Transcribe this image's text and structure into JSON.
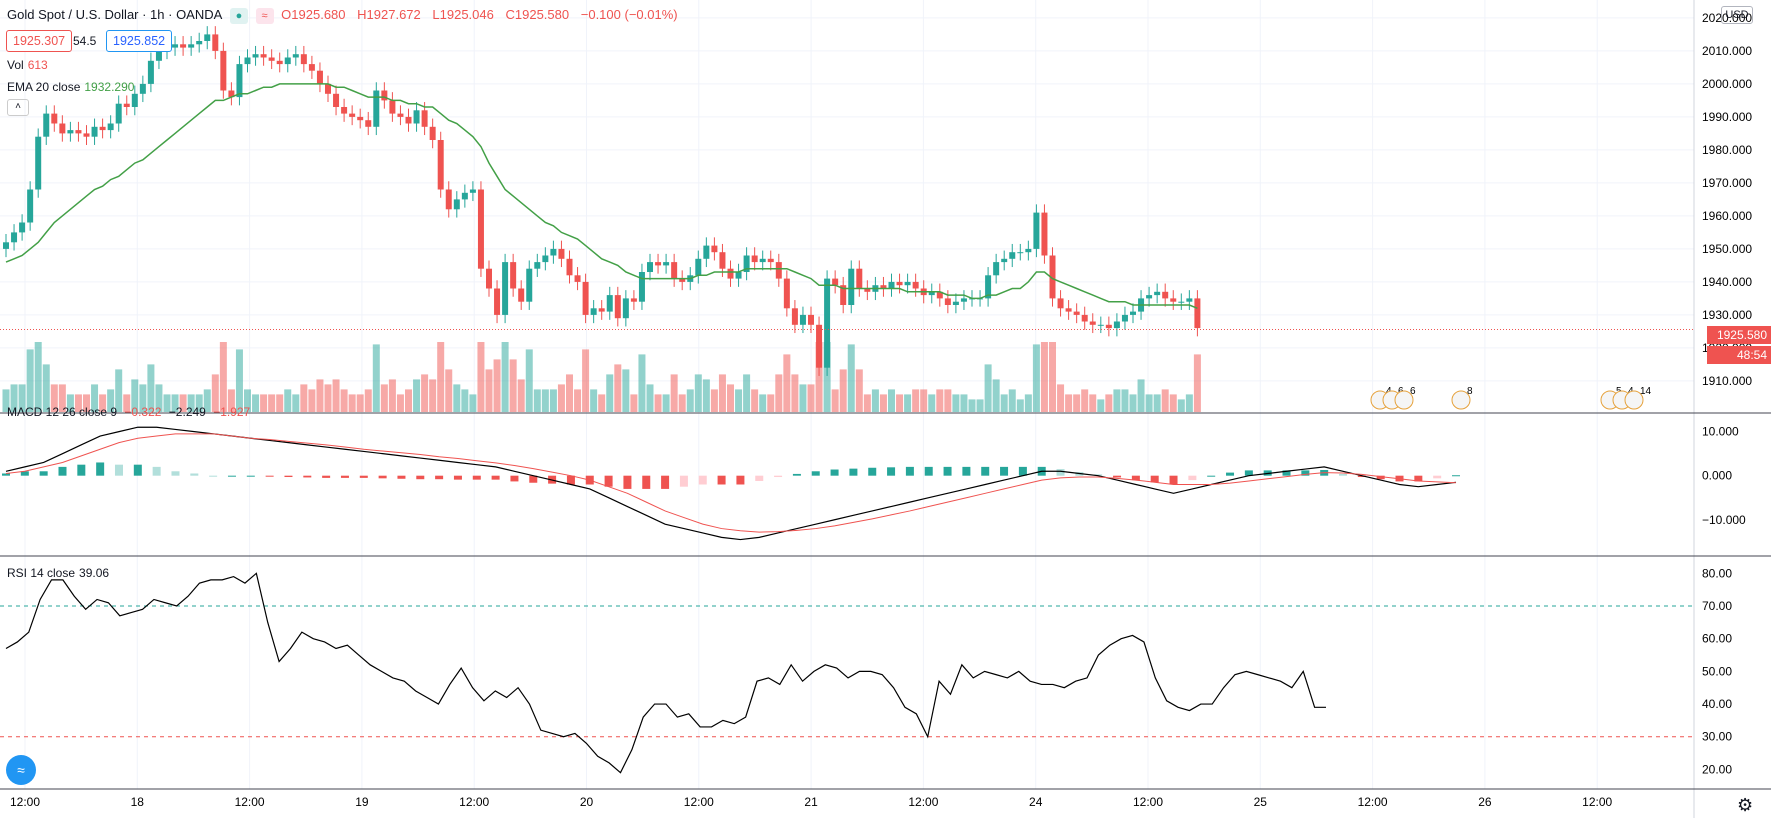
{
  "header": {
    "symbol": "Gold Spot / U.S. Dollar · 1h · OANDA",
    "ohlc": [
      {
        "k": "O",
        "v": "1925.680"
      },
      {
        "k": "H",
        "v": "1927.672"
      },
      {
        "k": "L",
        "v": "1925.046"
      },
      {
        "k": "C",
        "v": "1925.580"
      }
    ],
    "change": "−0.100 (−0.01%)",
    "bid": "1925.307",
    "spread": "54.5",
    "ask": "1925.852",
    "vol_label": "Vol",
    "vol_value": "613",
    "ema_label": "EMA 20 close",
    "ema_value": "1932.290",
    "currency": "USD",
    "last_price": "1925.580",
    "countdown": "48:54",
    "macd_label": "MACD 12 26 close 9",
    "macd_values": [
      "−0.322",
      "−2.249",
      "−1.927"
    ],
    "rsi_label": "RSI 14 close",
    "rsi_value": "39.06",
    "event_labels": [
      "4",
      "6",
      "6",
      "8",
      "5",
      "4",
      "14"
    ],
    "colors": {
      "up": "#26a69a",
      "down": "#ef5350",
      "ema": "#43a047",
      "macd": "#000000",
      "signal": "#ef5350",
      "rsi": "#000000"
    }
  },
  "chart_data": [
    {
      "type": "candlestick",
      "title": "Gold Spot / U.S. Dollar · 1h · OANDA",
      "x_ticks": [
        "12:00",
        "18",
        "12:00",
        "19",
        "12:00",
        "20",
        "12:00",
        "21",
        "12:00",
        "24",
        "12:00",
        "25",
        "12:00",
        "26",
        "12:00"
      ],
      "y_ticks": [
        "1910.000",
        "1920.000",
        "1930.000",
        "1940.000",
        "1950.000",
        "1960.000",
        "1970.000",
        "1980.000",
        "1990.000",
        "2000.000",
        "2010.000",
        "2020.000"
      ],
      "ylim": [
        1903,
        2023
      ],
      "close": [
        1952,
        1955,
        1958,
        1968,
        1984,
        1991,
        1988,
        1985,
        1986,
        1985,
        1984,
        1987,
        1986,
        1988,
        1994,
        1993,
        1997,
        2000,
        2007,
        2010,
        2011,
        2012,
        2011,
        2012,
        2013,
        2015,
        2010,
        1998,
        1996,
        2006,
        2008,
        2009,
        2008,
        2007,
        2006,
        2008,
        2009,
        2006,
        2004,
        2000,
        1997,
        1993,
        1991,
        1990,
        1989,
        1987,
        1998,
        1995,
        1991,
        1990,
        1988,
        1992,
        1987,
        1983,
        1968,
        1962,
        1965,
        1967,
        1968,
        1944,
        1938,
        1930,
        1946,
        1938,
        1934,
        1944,
        1946,
        1948,
        1950,
        1947,
        1942,
        1940,
        1930,
        1932,
        1931,
        1936,
        1929,
        1935,
        1934,
        1943,
        1946,
        1945,
        1946,
        1941,
        1940,
        1942,
        1947,
        1951,
        1949,
        1944,
        1941,
        1943,
        1948,
        1946,
        1947,
        1946,
        1941,
        1932,
        1927,
        1930,
        1927,
        1914,
        1941,
        1939,
        1933,
        1944,
        1938,
        1937,
        1939,
        1938,
        1940,
        1939,
        1940,
        1938,
        1936,
        1937,
        1935,
        1933,
        1934,
        1935,
        1935,
        1935,
        1942,
        1946,
        1947,
        1949,
        1949,
        1950,
        1961,
        1948,
        1935,
        1932,
        1931,
        1930,
        1928,
        1927,
        1927,
        1926,
        1928,
        1930,
        1931,
        1935,
        1936,
        1937,
        1935,
        1934,
        1934,
        1935,
        1926
      ]
    },
    {
      "type": "line",
      "name": "EMA 20 close",
      "values": [
        1946,
        1947,
        1948,
        1950,
        1952,
        1955,
        1958,
        1960,
        1962,
        1964,
        1966,
        1968,
        1969,
        1971,
        1972,
        1974,
        1976,
        1977,
        1979,
        1981,
        1983,
        1985,
        1987,
        1989,
        1991,
        1993,
        1995,
        1995,
        1996,
        1997,
        1997,
        1998,
        1999,
        1999,
        2000,
        2000,
        2000,
        2000,
        2000,
        2000,
        2000,
        1999,
        1999,
        1998,
        1997,
        1996,
        1996,
        1996,
        1995,
        1995,
        1994,
        1994,
        1993,
        1993,
        1991,
        1989,
        1988,
        1986,
        1984,
        1981,
        1976,
        1972,
        1968,
        1966,
        1964,
        1962,
        1960,
        1958,
        1957,
        1955,
        1954,
        1953,
        1951,
        1949,
        1947,
        1946,
        1945,
        1943,
        1942,
        1941,
        1941,
        1941,
        1941,
        1941,
        1941,
        1941,
        1942,
        1942,
        1943,
        1943,
        1943,
        1943,
        1944,
        1944,
        1944,
        1944,
        1944,
        1944,
        1943,
        1942,
        1941,
        1939,
        1939,
        1939,
        1938,
        1938,
        1938,
        1938,
        1938,
        1938,
        1938,
        1938,
        1937,
        1937,
        1937,
        1937,
        1937,
        1936,
        1936,
        1936,
        1935,
        1935,
        1936,
        1936,
        1937,
        1938,
        1938,
        1940,
        1943,
        1943,
        1941,
        1940,
        1939,
        1938,
        1937,
        1936,
        1935,
        1934,
        1934,
        1934,
        1933,
        1933,
        1933,
        1933,
        1933,
        1933,
        1933,
        1933,
        1932
      ],
      "values_max": 2000
    },
    {
      "type": "bar",
      "name": "Vol",
      "value": 613
    },
    {
      "type": "macd",
      "title": "MACD 12 26 close 9",
      "y_ticks": [
        "−10.000",
        "0.000",
        "10.000"
      ],
      "ylim": [
        -18,
        14
      ],
      "macd": [
        1,
        2,
        3,
        5,
        7,
        9,
        10,
        11,
        11,
        10.5,
        10,
        9.5,
        9,
        8.5,
        8,
        7.5,
        7,
        6.5,
        6,
        5.5,
        5,
        4.5,
        4,
        3.5,
        3,
        2.5,
        2,
        1,
        0,
        -1,
        -2,
        -3,
        -5,
        -7,
        -9,
        -11,
        -12,
        -13,
        -14,
        -14.5,
        -14,
        -13,
        -12,
        -11,
        -10,
        -9,
        -8,
        -7,
        -6,
        -5,
        -4,
        -3,
        -2,
        -1,
        0,
        1,
        1,
        0.5,
        0,
        -1,
        -2,
        -3,
        -4,
        -3,
        -2,
        -1,
        0,
        0.5,
        1,
        1.5,
        2,
        1,
        0,
        -1,
        -2,
        -2.5,
        -2,
        -1.5
      ],
      "signal": [
        0.5,
        1,
        2,
        3,
        4.5,
        6,
        7.5,
        8.5,
        9,
        9.5,
        9.5,
        9.5,
        9,
        8.5,
        8.2,
        7.8,
        7.4,
        7,
        6.5,
        6,
        5.6,
        5.2,
        4.8,
        4.3,
        3.9,
        3.4,
        2.9,
        2.3,
        1.6,
        0.8,
        0,
        -1,
        -2.5,
        -4,
        -6,
        -8,
        -9.5,
        -11,
        -12,
        -12.5,
        -12.8,
        -12.7,
        -12.4,
        -12,
        -11.4,
        -10.6,
        -9.8,
        -8.9,
        -8,
        -7,
        -6,
        -5,
        -4,
        -3,
        -2,
        -1,
        -0.5,
        -0.3,
        -0.3,
        -0.6,
        -1,
        -1.5,
        -2,
        -2,
        -2,
        -1.7,
        -1.2,
        -0.7,
        -0.2,
        0.3,
        0.7,
        0.6,
        0.3,
        -0.2,
        -0.7,
        -1.2,
        -1.4,
        -1.6
      ],
      "histogram_last": -1.927
    },
    {
      "type": "line",
      "title": "RSI 14 close",
      "y_ticks": [
        "20.00",
        "30.00",
        "40.00",
        "50.00",
        "60.00",
        "70.00",
        "80.00"
      ],
      "ylim": [
        14,
        85
      ],
      "levels": [
        70,
        30
      ],
      "values": [
        57,
        59,
        62,
        72,
        78,
        78,
        73,
        69,
        72,
        71,
        67,
        68,
        69,
        72,
        71,
        70,
        73,
        77,
        78,
        78,
        79,
        77,
        80,
        65,
        53,
        57,
        62,
        60,
        59,
        57,
        58,
        55,
        52,
        50,
        48,
        47,
        44,
        42,
        40,
        46,
        51,
        45,
        41,
        44,
        42,
        45,
        40,
        32,
        31,
        30,
        31,
        28,
        24,
        22,
        19,
        26,
        36,
        40,
        40,
        36,
        37,
        33,
        33,
        35,
        34,
        36,
        47,
        48,
        46,
        52,
        47,
        50,
        52,
        51,
        48,
        50,
        50,
        49,
        45,
        39,
        37,
        30,
        47,
        43,
        52,
        48,
        50,
        49,
        48,
        50,
        47,
        46,
        46,
        45,
        47,
        48,
        55,
        58,
        60,
        61,
        59,
        48,
        41,
        39,
        38,
        40,
        40,
        45,
        49,
        50,
        49,
        48,
        47,
        45,
        50,
        39,
        39
      ],
      "current": 39.06
    }
  ]
}
